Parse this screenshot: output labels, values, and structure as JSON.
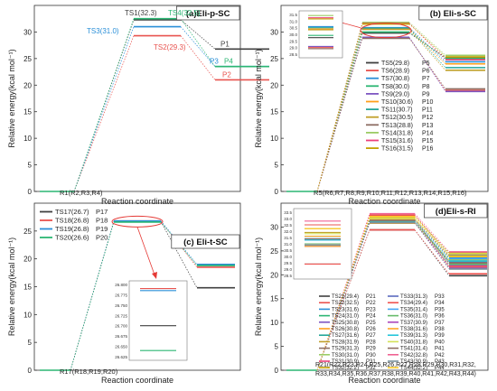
{
  "chart_data": [
    {
      "id": "a",
      "type": "line",
      "panel_title": "(a)Eli-p-SC",
      "xlabel": "Reaction coordinate",
      "ylabel": "Relative energy(kcal mol⁻¹)",
      "ylim": [
        0,
        35
      ],
      "yticks": [
        0,
        5,
        10,
        15,
        20,
        25,
        30
      ],
      "reactant": {
        "label": "R1(R2,R3,R4)",
        "value": 0
      },
      "series": [
        {
          "ts": "TS1",
          "ts_label": "TS1(32.3)",
          "ts_value": 32.3,
          "product": "P1",
          "p_value": 26.8,
          "color": "#404040"
        },
        {
          "ts": "TS2",
          "ts_label": "TS2(29.3)",
          "ts_value": 29.3,
          "product": "P2",
          "p_value": 21.0,
          "color": "#e8534f"
        },
        {
          "ts": "TS3",
          "ts_label": "TS3(31.0)",
          "ts_value": 31.0,
          "product": "P3",
          "p_value": 23.5,
          "color": "#2a8fd8"
        },
        {
          "ts": "TS4",
          "ts_label": "TS4(32.5)",
          "ts_value": 32.5,
          "product": "P4",
          "p_value": 23.5,
          "color": "#2bb673"
        }
      ]
    },
    {
      "id": "b",
      "type": "line",
      "panel_title": "(b) Eli-s-SC",
      "xlabel": "Reaction coordinate",
      "ylabel": "Relative energy(kcal mol⁻¹)",
      "ylim": [
        0,
        35
      ],
      "yticks": [
        0,
        5,
        10,
        15,
        20,
        25,
        30
      ],
      "reactant": {
        "label": "R5(R6,R7,R8,R9,R10,R11,R12,R13,R14,R15,R16)",
        "value": 0
      },
      "inset_ticks": [
        "31.5",
        "31.0",
        "30.5",
        "30.0",
        "29.5",
        "29.0",
        "28.5"
      ],
      "legend": [
        {
          "ts_label": "TS5(29.8)",
          "product": "P5"
        },
        {
          "ts_label": "TS6(28.9)",
          "product": "P6"
        },
        {
          "ts_label": "TS7(30.8)",
          "product": "P7"
        },
        {
          "ts_label": "TS8(30.0)",
          "product": "P8"
        },
        {
          "ts_label": "TS9(29.0)",
          "product": "P9"
        },
        {
          "ts_label": "TS10(30.6)",
          "product": "P10"
        },
        {
          "ts_label": "TS11(30.7)",
          "product": "P11"
        },
        {
          "ts_label": "TS12(30.5)",
          "product": "P12"
        },
        {
          "ts_label": "TS13(28.8)",
          "product": "P13"
        },
        {
          "ts_label": "TS14(31.8)",
          "product": "P14"
        },
        {
          "ts_label": "TS15(31.6)",
          "product": "P15"
        },
        {
          "ts_label": "TS16(31.5)",
          "product": "P16"
        }
      ],
      "ts_values": [
        29.8,
        28.9,
        30.8,
        30.0,
        29.0,
        30.6,
        30.7,
        30.5,
        28.8,
        31.8,
        31.6,
        31.5
      ],
      "p_values": [
        25.2,
        19.0,
        24.4,
        25.0,
        18.8,
        24.0,
        23.3,
        22.8,
        19.3,
        25.6,
        24.8,
        25.3
      ],
      "colors": [
        "#404040",
        "#e8534f",
        "#2a8fd8",
        "#2bb673",
        "#7e57c2",
        "#ff9f1c",
        "#26a69a",
        "#c0a02a",
        "#8d6e63",
        "#9ccc65",
        "#ec407a",
        "#c5a000"
      ]
    },
    {
      "id": "c",
      "type": "line",
      "panel_title": "(c) Eli-t-SC",
      "xlabel": "Reaction coordinate",
      "ylabel": "Relative energy(kcal mol⁻¹)",
      "ylim": [
        0,
        30
      ],
      "yticks": [
        0,
        5,
        10,
        15,
        20,
        25
      ],
      "reactant": {
        "label": "R17(R18,R19,R20)",
        "value": 0
      },
      "inset_ticks": [
        "26.800",
        "26.775",
        "26.750",
        "26.725",
        "26.700",
        "26.675",
        "26.650",
        "26.625"
      ],
      "legend": [
        {
          "ts_label": "TS17(26.7)",
          "product": "P17"
        },
        {
          "ts_label": "TS18(26.8)",
          "product": "P18"
        },
        {
          "ts_label": "TS19(26.8)",
          "product": "P19"
        },
        {
          "ts_label": "TS20(26.6)",
          "product": "P20"
        }
      ],
      "ts_values": [
        26.7,
        26.8,
        26.8,
        26.6
      ],
      "inset_values": [
        26.7,
        26.79,
        26.785,
        26.64
      ],
      "p_values": [
        14.8,
        18.5,
        19.0,
        18.8
      ],
      "colors": [
        "#404040",
        "#e8534f",
        "#2a8fd8",
        "#2bb673"
      ]
    },
    {
      "id": "d",
      "type": "line",
      "panel_title": "(d)Eli-s-RI",
      "xlabel": "Reaction coordinate",
      "ylabel": "Relative energy(kcal mol⁻¹)",
      "ylim": [
        0,
        35
      ],
      "yticks": [
        0,
        5,
        10,
        15,
        20,
        25,
        30
      ],
      "reactant": {
        "label_line1": "R21(R22,R23,R24,R25,R26,R27,R28,R29,R30,R31,R32,",
        "label_line2": "R33,R34,R35,R36,R37,R38,R39,R40,R41,R42,R43,R44)",
        "value": 0
      },
      "inset_ticks": [
        "33.5",
        "33.0",
        "32.5",
        "32.0",
        "31.5",
        "31.0",
        "30.5",
        "30.0",
        "29.5",
        "29.0",
        "28.5"
      ],
      "legend": [
        {
          "ts_label": "TS21(29.4)",
          "product": "P21"
        },
        {
          "ts_label": "TS22(32.5)",
          "product": "P22"
        },
        {
          "ts_label": "TS23(31.6)",
          "product": "P23"
        },
        {
          "ts_label": "TS24(31.0)",
          "product": "P24"
        },
        {
          "ts_label": "TS25(30.8)",
          "product": "P25"
        },
        {
          "ts_label": "TS26(30.8)",
          "product": "P26"
        },
        {
          "ts_label": "TS27(31.6)",
          "product": "P27"
        },
        {
          "ts_label": "TS28(31.9)",
          "product": "P28"
        },
        {
          "ts_label": "TS29(31.3)",
          "product": "P29"
        },
        {
          "ts_label": "TS30(31.0)",
          "product": "P30"
        },
        {
          "ts_label": "TS31(30.9)",
          "product": "P31"
        },
        {
          "ts_label": "TS32(32.2)",
          "product": "P32"
        },
        {
          "ts_label": "TS33(31.3)",
          "product": "P33"
        },
        {
          "ts_label": "TS34(29.4)",
          "product": "P34"
        },
        {
          "ts_label": "TS35(31.4)",
          "product": "P35"
        },
        {
          "ts_label": "TS36(31.0)",
          "product": "P36"
        },
        {
          "ts_label": "TS37(30.9)",
          "product": "P37"
        },
        {
          "ts_label": "TS38(31.6)",
          "product": "P38"
        },
        {
          "ts_label": "TS39(31.3)",
          "product": "P39"
        },
        {
          "ts_label": "TS40(31.8)",
          "product": "P40"
        },
        {
          "ts_label": "TS41(31.4)",
          "product": "P41"
        },
        {
          "ts_label": "TS42(32.8)",
          "product": "P42"
        },
        {
          "ts_label": "TS43(30.9)",
          "product": "P43"
        },
        {
          "ts_label": "TS44(32.2)",
          "product": "P44"
        }
      ],
      "ts_values": [
        29.4,
        32.5,
        31.6,
        31.0,
        30.8,
        30.8,
        31.6,
        31.9,
        31.3,
        31.0,
        30.9,
        32.2,
        31.3,
        29.4,
        31.4,
        31.0,
        30.9,
        31.6,
        31.3,
        31.8,
        31.4,
        32.8,
        30.9,
        32.2
      ],
      "p_values": [
        19.8,
        24.2,
        23.6,
        22.8,
        22.0,
        23.0,
        24.0,
        21.6,
        22.4,
        23.2,
        21.8,
        24.6,
        22.6,
        20.2,
        23.4,
        22.2,
        21.4,
        23.8,
        22.9,
        24.4,
        22.5,
        24.8,
        21.2,
        23.9
      ],
      "colors": [
        "#404040",
        "#e8534f",
        "#2a8fd8",
        "#2bb673",
        "#7e57c2",
        "#ff9f1c",
        "#26a69a",
        "#c0a02a",
        "#8d6e63",
        "#9ccc65",
        "#ec407a",
        "#c5a000",
        "#5c6bc0",
        "#ef5350",
        "#42a5f5",
        "#66bb6a",
        "#ab47bc",
        "#ffa726",
        "#26c6da",
        "#d4e157",
        "#8d6e63",
        "#f06292",
        "#78909c",
        "#ffca28"
      ]
    }
  ]
}
